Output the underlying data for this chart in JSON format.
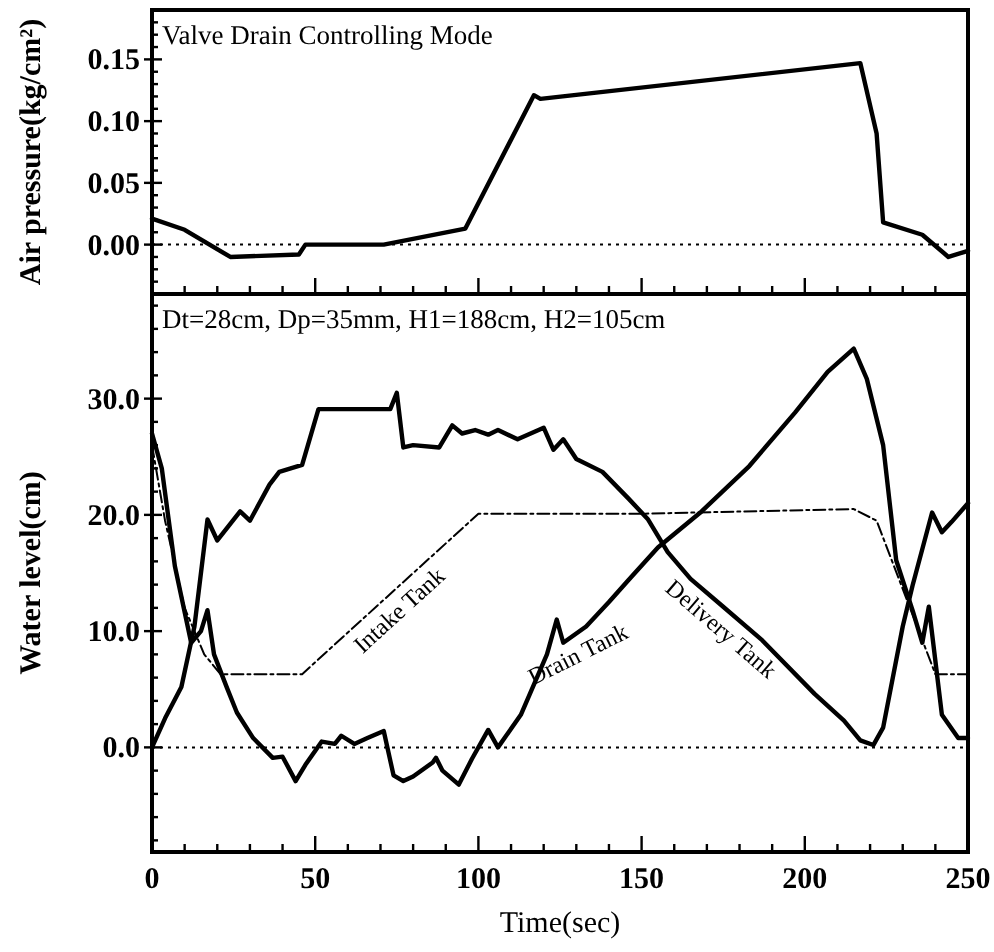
{
  "chart_data": [
    {
      "type": "line",
      "ylabel": "Air pressure(kg/cm²)",
      "annotations": [
        "Valve Drain Controlling Mode"
      ],
      "tick_labels": "y",
      "xlim": [
        0,
        250
      ],
      "ylim": [
        -0.04,
        0.19
      ],
      "xticks": [
        0,
        {
          "value": 10,
          "label": null
        },
        {
          "value": 20,
          "label": null
        },
        {
          "value": 30,
          "label": null
        },
        {
          "value": 40,
          "label": null
        },
        50,
        {
          "value": 60,
          "label": null
        },
        {
          "value": 70,
          "label": null
        },
        {
          "value": 80,
          "label": null
        },
        {
          "value": 90,
          "label": null
        },
        100,
        {
          "value": 110,
          "label": null
        },
        {
          "value": 120,
          "label": null
        },
        {
          "value": 130,
          "label": null
        },
        {
          "value": 140,
          "label": null
        },
        150,
        {
          "value": 160,
          "label": null
        },
        {
          "value": 170,
          "label": null
        },
        {
          "value": 180,
          "label": null
        },
        {
          "value": 190,
          "label": null
        },
        200,
        {
          "value": 210,
          "label": null
        },
        {
          "value": 220,
          "label": null
        },
        {
          "value": 230,
          "label": null
        },
        {
          "value": 240,
          "label": null
        },
        250
      ],
      "yticks": [
        {
          "value": -0.03,
          "label": null
        },
        {
          "value": -0.02,
          "label": null
        },
        {
          "value": -0.01,
          "label": null
        },
        {
          "value": 0,
          "label": "0.00"
        },
        {
          "value": 0.01,
          "label": null
        },
        {
          "value": 0.02,
          "label": null
        },
        {
          "value": 0.03,
          "label": null
        },
        {
          "value": 0.04,
          "label": null
        },
        {
          "value": 0.05,
          "label": "0.05"
        },
        {
          "value": 0.06,
          "label": null
        },
        {
          "value": 0.07,
          "label": null
        },
        {
          "value": 0.08,
          "label": null
        },
        {
          "value": 0.09,
          "label": null
        },
        {
          "value": 0.1,
          "label": "0.10"
        },
        {
          "value": 0.11,
          "label": null
        },
        {
          "value": 0.12,
          "label": null
        },
        {
          "value": 0.13,
          "label": null
        },
        {
          "value": 0.14,
          "label": null
        },
        {
          "value": 0.15,
          "label": "0.15"
        },
        {
          "value": 0.16,
          "label": null
        },
        {
          "value": 0.17,
          "label": null
        },
        {
          "value": 0.18,
          "label": null
        }
      ],
      "ref_lines": [
        {
          "axis": "y",
          "value": 0,
          "color": "#000000",
          "line_style": "dotted"
        }
      ],
      "series": [
        {
          "color": "#000000",
          "line_style": "solid",
          "x": [
            0,
            10,
            24,
            45,
            47,
            71,
            96,
            117,
            119,
            217,
            222,
            224,
            236,
            244,
            250
          ],
          "values": [
            0.021,
            0.012,
            -0.01,
            -0.008,
            0.0,
            0.0,
            0.013,
            0.121,
            0.118,
            0.147,
            0.09,
            0.018,
            0.008,
            -0.01,
            -0.005
          ]
        }
      ]
    },
    {
      "type": "line",
      "ylabel": "Water level(cm)",
      "xlabel": "Time(sec)",
      "annotations": [
        "Dt=28cm, Dp=35mm, H1=188cm, H2=105cm"
      ],
      "xlim": [
        0,
        250
      ],
      "ylim": [
        -9,
        39
      ],
      "xticks": [
        0,
        {
          "value": 10,
          "label": null
        },
        {
          "value": 20,
          "label": null
        },
        {
          "value": 30,
          "label": null
        },
        {
          "value": 40,
          "label": null
        },
        50,
        {
          "value": 60,
          "label": null
        },
        {
          "value": 70,
          "label": null
        },
        {
          "value": 80,
          "label": null
        },
        {
          "value": 90,
          "label": null
        },
        100,
        {
          "value": 110,
          "label": null
        },
        {
          "value": 120,
          "label": null
        },
        {
          "value": 130,
          "label": null
        },
        {
          "value": 140,
          "label": null
        },
        150,
        {
          "value": 160,
          "label": null
        },
        {
          "value": 170,
          "label": null
        },
        {
          "value": 180,
          "label": null
        },
        {
          "value": 190,
          "label": null
        },
        200,
        {
          "value": 210,
          "label": null
        },
        {
          "value": 220,
          "label": null
        },
        {
          "value": 230,
          "label": null
        },
        {
          "value": 240,
          "label": null
        },
        250
      ],
      "yticks": [
        {
          "value": -8,
          "label": null
        },
        {
          "value": -6,
          "label": null
        },
        {
          "value": -4,
          "label": null
        },
        {
          "value": -2,
          "label": null
        },
        {
          "value": 0,
          "label": "0.0"
        },
        {
          "value": 2,
          "label": null
        },
        {
          "value": 4,
          "label": null
        },
        {
          "value": 6,
          "label": null
        },
        {
          "value": 8,
          "label": null
        },
        {
          "value": 10,
          "label": "10.0"
        },
        {
          "value": 12,
          "label": null
        },
        {
          "value": 14,
          "label": null
        },
        {
          "value": 16,
          "label": null
        },
        {
          "value": 18,
          "label": null
        },
        {
          "value": 20,
          "label": "20.0"
        },
        {
          "value": 22,
          "label": null
        },
        {
          "value": 24,
          "label": null
        },
        {
          "value": 26,
          "label": null
        },
        {
          "value": 28,
          "label": null
        },
        {
          "value": 30,
          "label": "30.0"
        },
        {
          "value": 32,
          "label": null
        },
        {
          "value": 34,
          "label": null
        },
        {
          "value": 36,
          "label": null
        },
        {
          "value": 38,
          "label": null
        }
      ],
      "ref_lines": [
        {
          "axis": "y",
          "value": 0,
          "color": "#000000",
          "line_style": "dotted"
        }
      ],
      "series": [
        {
          "name": "Intake Tank",
          "color": "#000000",
          "line_style": "dashed",
          "x": [
            0,
            4,
            10,
            16,
            21,
            46,
            100,
            150,
            215,
            222,
            240,
            250
          ],
          "values": [
            26,
            19.5,
            12,
            8,
            6.3,
            6.3,
            20.1,
            20.1,
            20.5,
            19.5,
            6.3,
            6.3
          ]
        },
        {
          "name": "Drain Tank",
          "color": "#000000",
          "line_style": "solid",
          "x": [
            0,
            3,
            7,
            12,
            15,
            17,
            19,
            23,
            26,
            31,
            37,
            40,
            44,
            47,
            52,
            56,
            58,
            62,
            66,
            71,
            74,
            77,
            80,
            86,
            87,
            89,
            94,
            98,
            103,
            106,
            113,
            121,
            124,
            126,
            133,
            140,
            146,
            155,
            168,
            183,
            197,
            207,
            215,
            219,
            224,
            228,
            233,
            236,
            238,
            242,
            247,
            250
          ],
          "values": [
            27,
            24,
            15.6,
            9,
            10,
            11.8,
            8,
            5.1,
            3,
            0.8,
            -0.9,
            -0.8,
            -2.9,
            -1.5,
            0.5,
            0.3,
            1.0,
            0.3,
            0.8,
            1.4,
            -2.4,
            -2.9,
            -2.5,
            -1.3,
            -0.9,
            -2,
            -3.2,
            -1.0,
            1.5,
            0,
            2.8,
            8,
            11,
            9,
            10.4,
            12.5,
            14.4,
            17.2,
            20.2,
            24.2,
            28.8,
            32.3,
            34.3,
            31.7,
            26,
            16.1,
            11.8,
            9,
            12.1,
            2.8,
            0.8,
            0.8
          ]
        },
        {
          "name": "Delivery Tank",
          "color": "#000000",
          "line_style": "solid",
          "x": [
            0,
            4,
            9,
            13,
            17,
            20,
            27,
            30,
            36,
            39,
            46,
            51,
            73,
            75,
            77,
            80,
            88,
            92,
            95,
            99,
            103,
            106,
            112,
            120,
            123,
            126,
            130,
            138,
            146,
            152,
            158,
            165,
            175,
            187,
            203,
            212,
            217,
            221,
            224,
            230,
            233,
            239,
            242,
            245,
            250
          ],
          "values": [
            0,
            2.5,
            5.2,
            10.4,
            19.6,
            17.8,
            20.3,
            19.5,
            22.6,
            23.7,
            24.3,
            29.1,
            29.1,
            30.5,
            25.8,
            26,
            25.8,
            27.7,
            27,
            27.3,
            26.9,
            27.3,
            26.5,
            27.5,
            25.6,
            26.5,
            24.8,
            23.7,
            21.4,
            19.6,
            16.8,
            14.5,
            12.1,
            9.2,
            4.6,
            2.3,
            0.6,
            0.2,
            1.7,
            10.4,
            13.9,
            20.2,
            18.5,
            19.4,
            21
          ]
        }
      ]
    }
  ]
}
